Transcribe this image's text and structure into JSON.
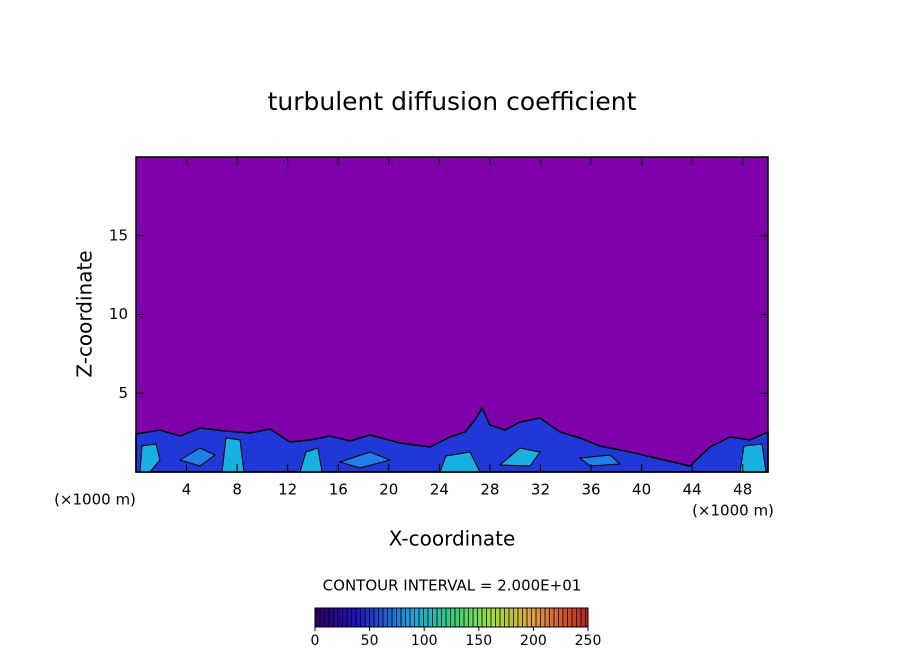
{
  "chart_data": {
    "type": "contour",
    "title": "turbulent diffusion coefficient",
    "x_label": "X-coordinate",
    "y_label": "Z-coordinate",
    "x_unit_labels": [
      "(×1000 m)",
      "(×1000 m)"
    ],
    "xlim": [
      0,
      50
    ],
    "xticks": [
      4,
      8,
      12,
      16,
      20,
      24,
      28,
      32,
      36,
      40,
      44,
      48
    ],
    "ylim": [
      0,
      20
    ],
    "yticks": [
      5,
      10,
      15
    ],
    "background_color": "#7f00aa",
    "contour_interval_label": "CONTOUR INTERVAL = 2.000E+01",
    "colorbar": {
      "lim": [
        0,
        250
      ],
      "ticks": [
        0,
        50,
        100,
        150,
        200,
        250
      ]
    }
  }
}
